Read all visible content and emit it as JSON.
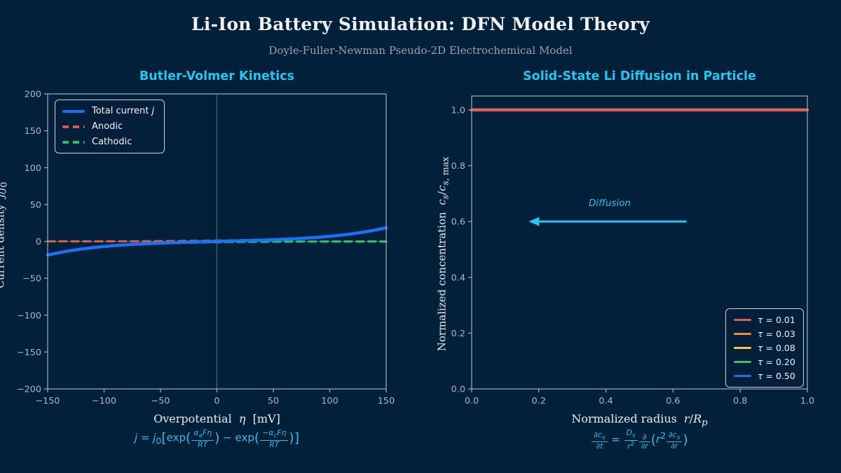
{
  "page": {
    "background": "#03203a",
    "accent_cyan": "#29c5f0",
    "formula_color": "#3db9e9",
    "spine_color": "#a2aeb9",
    "tick_label_color": "#aab7c1",
    "zero_line_color": "#5c6c79"
  },
  "header": {
    "title": "Li-Ion Battery Simulation: DFN Model Theory",
    "subtitle": "Doyle-Fuller-Newman Pseudo-2D Electrochemical Model"
  },
  "display": {
    "bv": {
      "xlabel_html": "Overpotential&nbsp;&nbsp;<i>η</i>&nbsp;&nbsp;[mV]",
      "ylabel_html": "Current density&nbsp;&nbsp;<i>j</i>/<i>j</i><sub>0</sub>",
      "formula_html": "<i>j</i> = <i>j</i><sub>0</sub><span class=\"big\">[</span>exp<span class=\"big\">(</span><span class=\"frac\"><span class=\"top\"><i>α<sub>a</sub>Fη</i></span><span class=\"bot\"><i>RT</i></span></span><span class=\"big\">)</span> − exp<span class=\"big\">(</span><span class=\"frac\"><span class=\"top\">−<i>α<sub>c</sub>Fη</i></span><span class=\"bot\"><i>RT</i></span></span><span class=\"big\">)</span><span class=\"big\">]</span>"
    },
    "diff": {
      "xlabel_html": "Normalized radius&nbsp;&nbsp;<i>r</i>/<i>R<sub>p</sub></i>",
      "ylabel_html": "Normalized concentration&nbsp;&nbsp;<i>c<sub>s</sub></i>/<i>c</i><sub><i>s</i>, max</sub>",
      "formula_html": "<span class=\"frac\"><span class=\"top\">∂<i>c<sub>s</sub></i></span><span class=\"bot\">∂<i>t</i></span></span> = <span class=\"frac\"><span class=\"top\"><i>D<sub>s</sub></i></span><span class=\"bot\"><i>r</i><sup>2</sup></span></span><span class=\"frac\"><span class=\"top\">∂</span><span class=\"bot\">∂<i>r</i></span></span><span class=\"big\">(</span><i>r</i><sup>2</sup><span class=\"frac\"><span class=\"top\">∂<i>c<sub>s</sub></i></span><span class=\"bot\">∂<i>r</i></span></span><span class=\"big\">)</span>"
    }
  },
  "chart_data": [
    {
      "id": "butler-volmer",
      "type": "line",
      "title": "Butler-Volmer Kinetics",
      "xlabel": "Overpotential η [mV]",
      "ylabel": "Current density j/j0",
      "formula": "j = j0[exp(αaFη/RT) − exp(−αcFη/RT)]",
      "xlim": [
        -150,
        150
      ],
      "ylim": [
        -200,
        200
      ],
      "xticks": [
        -150,
        -100,
        -50,
        0,
        50,
        100,
        150
      ],
      "xtick_labels": [
        "−150",
        "−100",
        "−50",
        "0",
        "50",
        "100",
        "150"
      ],
      "yticks": [
        -200,
        -150,
        -100,
        -50,
        0,
        50,
        100,
        150,
        200
      ],
      "ytick_labels": [
        "−200",
        "−150",
        "−100",
        "−50",
        "0",
        "50",
        "100",
        "150",
        "200"
      ],
      "zero_lines": true,
      "legend_position": "upper-left",
      "x": [
        -150,
        -135,
        -120,
        -105,
        -90,
        -75,
        -60,
        -45,
        -30,
        -15,
        0,
        15,
        30,
        45,
        60,
        75,
        90,
        105,
        120,
        135,
        150
      ],
      "series": [
        {
          "name": "Total current j",
          "name_html": "Total current <i>j</i>",
          "color": "#1e6ff5",
          "style": "solid",
          "width": 4.5,
          "values": [
            -18.45,
            -13.76,
            -10.24,
            -7.59,
            -5.59,
            -4.07,
            -2.9,
            -1.98,
            -1.24,
            -0.59,
            0,
            0.59,
            1.24,
            1.98,
            2.9,
            4.07,
            5.59,
            7.59,
            10.24,
            13.76,
            18.45
          ]
        },
        {
          "name": "Anodic",
          "name_html": "Anodic",
          "color": "#cd5f48",
          "style": "dashed",
          "width": 3.2,
          "values": [
            0.05,
            0.07,
            0.1,
            0.13,
            0.17,
            0.23,
            0.31,
            0.42,
            0.56,
            0.75,
            1.0,
            1.34,
            1.79,
            2.4,
            3.21,
            4.3,
            5.76,
            7.72,
            10.33,
            13.84,
            18.51
          ]
        },
        {
          "name": "Cathodic",
          "name_html": "Cathodic",
          "color": "#2dbe69",
          "style": "dashed",
          "width": 3.2,
          "values": [
            -18.51,
            -13.84,
            -10.33,
            -7.72,
            -5.76,
            -4.3,
            -3.21,
            -2.4,
            -1.79,
            -1.34,
            -1.0,
            -0.75,
            -0.56,
            -0.42,
            -0.31,
            -0.23,
            -0.17,
            -0.13,
            -0.1,
            -0.07,
            -0.05
          ]
        }
      ]
    },
    {
      "id": "solid-diffusion",
      "type": "line",
      "title": "Solid-State Li Diffusion in Particle",
      "xlabel": "Normalized radius r/Rp",
      "ylabel": "Normalized concentration cs/cs,max",
      "formula": "∂cs/∂t = (Ds/r²) ∂/∂r(r² ∂cs/∂r)",
      "xlim": [
        0,
        1
      ],
      "ylim": [
        0,
        1.05
      ],
      "xticks": [
        0,
        0.2,
        0.4,
        0.6,
        0.8,
        1
      ],
      "xtick_labels": [
        "0.0",
        "0.2",
        "0.4",
        "0.6",
        "0.8",
        "1.0"
      ],
      "yticks": [
        0,
        0.2,
        0.4,
        0.6,
        0.8,
        1
      ],
      "ytick_labels": [
        "0.0",
        "0.2",
        "0.4",
        "0.6",
        "0.8",
        "1.0"
      ],
      "zero_lines": false,
      "legend_position": "lower-right",
      "x": [
        0,
        1
      ],
      "series": [
        {
          "name": "τ = 0.01",
          "name_html": "<i>τ</i> = 0.01",
          "color": "#e05c5c",
          "style": "solid",
          "width": 4,
          "values": [
            1,
            1
          ]
        },
        {
          "name": "τ = 0.03",
          "name_html": "<i>τ</i> = 0.03",
          "color": "#f08c3c",
          "style": "solid",
          "width": 4,
          "values": [
            1,
            1
          ]
        },
        {
          "name": "τ = 0.08",
          "name_html": "<i>τ</i> = 0.08",
          "color": "#f5c846",
          "style": "solid",
          "width": 4,
          "values": [
            1,
            1
          ]
        },
        {
          "name": "τ = 0.20",
          "name_html": "<i>τ</i> = 0.20",
          "color": "#3cbe78",
          "style": "solid",
          "width": 4,
          "values": [
            1,
            1
          ]
        },
        {
          "name": "τ = 0.50",
          "name_html": "<i>τ</i> = 0.50",
          "color": "#1e6ff5",
          "style": "solid",
          "width": 4,
          "values": [
            1,
            1
          ]
        }
      ],
      "annotation": {
        "text": "Diffusion",
        "y": 0.6,
        "x_tail": 0.64,
        "x_head": 0.17
      }
    }
  ]
}
